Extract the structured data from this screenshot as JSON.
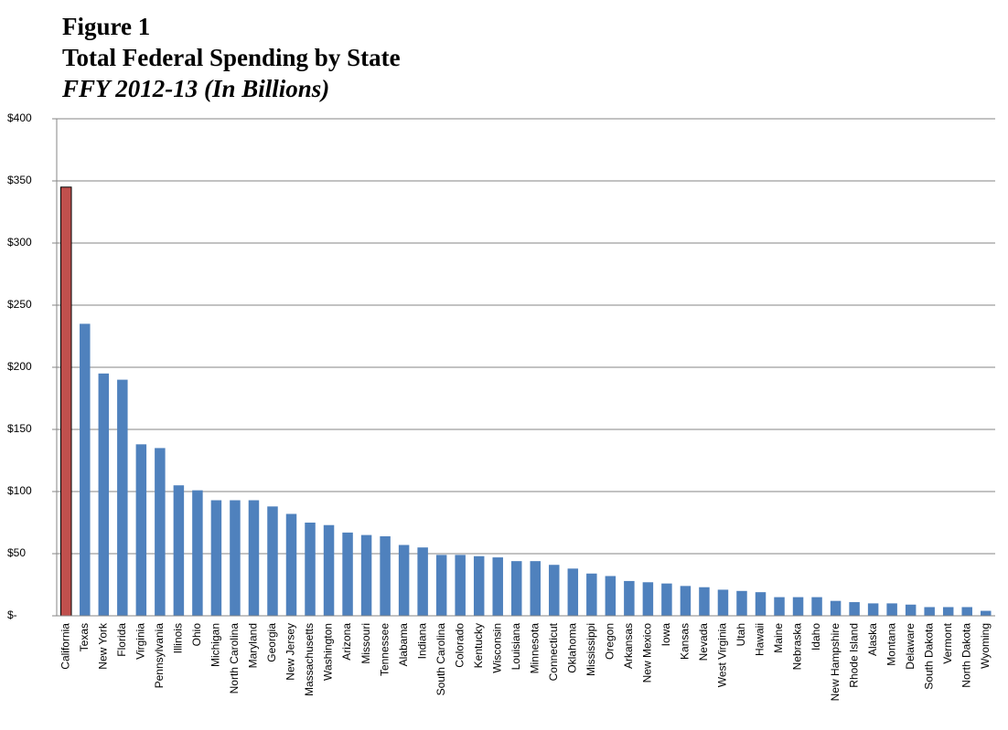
{
  "chart_data": {
    "type": "bar",
    "title": "Figure 1",
    "subtitle": "Total Federal Spending by State",
    "caption": "FFY 2012-13 (In Billions)",
    "categories": [
      "California",
      "Texas",
      "New York",
      "Florida",
      "Virginia",
      "Pennsylvania",
      "Illinois",
      "Ohio",
      "Michigan",
      "North Carolina",
      "Maryland",
      "Georgia",
      "New Jersey",
      "Massachusetts",
      "Washington",
      "Arizona",
      "Missouri",
      "Tennessee",
      "Alabama",
      "Indiana",
      "South Carolina",
      "Colorado",
      "Kentucky",
      "Wisconsin",
      "Louisiana",
      "Minnesota",
      "Connecticut",
      "Oklahoma",
      "Mississippi",
      "Oregon",
      "Arkansas",
      "New Mexico",
      "Iowa",
      "Kansas",
      "Nevada",
      "West Virginia",
      "Utah",
      "Hawaii",
      "Maine",
      "Nebraska",
      "Idaho",
      "New Hampshire",
      "Rhode Island",
      "Alaska",
      "Montana",
      "Delaware",
      "South Dakota",
      "Vermont",
      "North Dakota",
      "Wyoming"
    ],
    "values": [
      345,
      235,
      195,
      190,
      138,
      135,
      105,
      101,
      93,
      93,
      93,
      88,
      82,
      75,
      73,
      67,
      65,
      64,
      57,
      55,
      49,
      49,
      48,
      47,
      44,
      44,
      41,
      38,
      34,
      32,
      28,
      27,
      26,
      24,
      23,
      21,
      20,
      19,
      15,
      15,
      15,
      12,
      11,
      10,
      10,
      9,
      7,
      7,
      7,
      4
    ],
    "colors": [
      "#c0504d",
      "#4f81bd",
      "#4f81bd",
      "#4f81bd",
      "#4f81bd",
      "#4f81bd",
      "#4f81bd",
      "#4f81bd",
      "#4f81bd",
      "#4f81bd",
      "#4f81bd",
      "#4f81bd",
      "#4f81bd",
      "#4f81bd",
      "#4f81bd",
      "#4f81bd",
      "#4f81bd",
      "#4f81bd",
      "#4f81bd",
      "#4f81bd",
      "#4f81bd",
      "#4f81bd",
      "#4f81bd",
      "#4f81bd",
      "#4f81bd",
      "#4f81bd",
      "#4f81bd",
      "#4f81bd",
      "#4f81bd",
      "#4f81bd",
      "#4f81bd",
      "#4f81bd",
      "#4f81bd",
      "#4f81bd",
      "#4f81bd",
      "#4f81bd",
      "#4f81bd",
      "#4f81bd",
      "#4f81bd",
      "#4f81bd",
      "#4f81bd",
      "#4f81bd",
      "#4f81bd",
      "#4f81bd",
      "#4f81bd",
      "#4f81bd",
      "#4f81bd",
      "#4f81bd",
      "#4f81bd",
      "#4f81bd"
    ],
    "ylim": [
      0,
      400
    ],
    "yticks": [
      {
        "value": 0,
        "label": "$-"
      },
      {
        "value": 50,
        "label": "$50"
      },
      {
        "value": 100,
        "label": "$100"
      },
      {
        "value": 150,
        "label": "$150"
      },
      {
        "value": 200,
        "label": "$200"
      },
      {
        "value": 250,
        "label": "$250"
      },
      {
        "value": 300,
        "label": "$300"
      },
      {
        "value": 350,
        "label": "$350"
      },
      {
        "value": 400,
        "label": "$400"
      }
    ],
    "grid": true
  }
}
